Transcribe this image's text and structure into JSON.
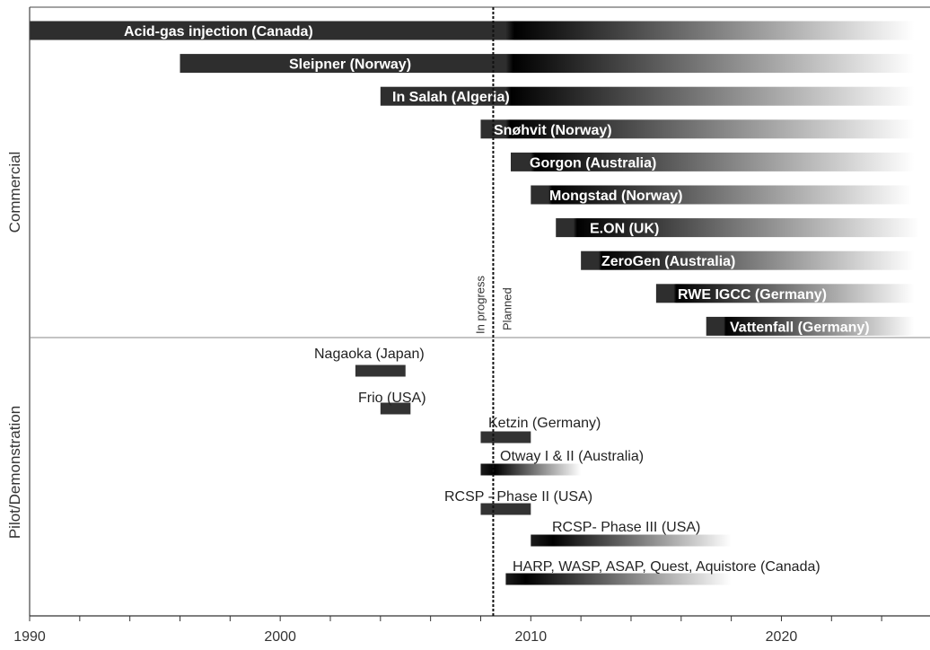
{
  "chart_data": {
    "type": "bar",
    "subtype": "gantt-timeline",
    "xlim": [
      1990,
      2025.5
    ],
    "x_ticks": [
      1990,
      2000,
      2010,
      2020
    ],
    "x_tick_labels": [
      "1990",
      "2000",
      "2010",
      "2020"
    ],
    "minor_tick_step": 2,
    "grid": false,
    "divider": {
      "year": 2008.5,
      "left_label": "In progress",
      "right_label": "Planned"
    },
    "groups": [
      {
        "key": "commercial",
        "label": "Commercial"
      },
      {
        "key": "pilot",
        "label": "Pilot/Demonstration"
      }
    ],
    "projects": [
      {
        "group": "commercial",
        "name": "Acid-gas injection (Canada)",
        "start": 1990,
        "solid_end": 2009,
        "fade_end": 2025.3
      },
      {
        "group": "commercial",
        "name": "Sleipner (Norway)",
        "start": 1996,
        "solid_end": 2009,
        "fade_end": 2025.3
      },
      {
        "group": "commercial",
        "name": "In Salah (Algeria)",
        "start": 2004,
        "solid_end": 2009,
        "fade_end": 2025.3
      },
      {
        "group": "commercial",
        "name": "Snøhvit (Norway)",
        "start": 2008,
        "solid_end": 2009,
        "fade_end": 2025.3
      },
      {
        "group": "commercial",
        "name": "Gorgon (Australia)",
        "start": 2009.2,
        "solid_end": 2010,
        "fade_end": 2025.3
      },
      {
        "group": "commercial",
        "name": "Mongstad (Norway)",
        "start": 2010,
        "solid_end": 2010.7,
        "fade_end": 2025.2
      },
      {
        "group": "commercial",
        "name": "E.ON (UK)",
        "start": 2011,
        "solid_end": 2011.7,
        "fade_end": 2025.5
      },
      {
        "group": "commercial",
        "name": "ZeroGen (Australia)",
        "start": 2012,
        "solid_end": 2012.7,
        "fade_end": 2025.3
      },
      {
        "group": "commercial",
        "name": "RWE IGCC (Germany)",
        "start": 2015,
        "solid_end": 2015.7,
        "fade_end": 2025.3
      },
      {
        "group": "commercial",
        "name": "Vattenfall (Germany)",
        "start": 2017,
        "solid_end": 2017.7,
        "fade_end": 2025.3
      },
      {
        "group": "pilot",
        "name": "Nagaoka (Japan)",
        "start": 2003,
        "solid_end": 2005,
        "fade_end": 2005
      },
      {
        "group": "pilot",
        "name": "Frio (USA)",
        "start": 2004,
        "solid_end": 2005.2,
        "fade_end": 2005.2
      },
      {
        "group": "pilot",
        "name": "Ketzin (Germany)",
        "start": 2008,
        "solid_end": 2010,
        "fade_end": 2010
      },
      {
        "group": "pilot",
        "name": "Otway I & II (Australia)",
        "start": 2008,
        "solid_end": 2008.5,
        "fade_end": 2012
      },
      {
        "group": "pilot",
        "name": "RCSP - Phase II (USA)",
        "start": 2008,
        "solid_end": 2010,
        "fade_end": 2010
      },
      {
        "group": "pilot",
        "name": "RCSP- Phase III (USA)",
        "start": 2010,
        "solid_end": 2010.8,
        "fade_end": 2018
      },
      {
        "group": "pilot",
        "name": "HARP, WASP, ASAP, Quest, Aquistore (Canada)",
        "start": 2009,
        "solid_end": 2009.7,
        "fade_end": 2018
      }
    ]
  }
}
